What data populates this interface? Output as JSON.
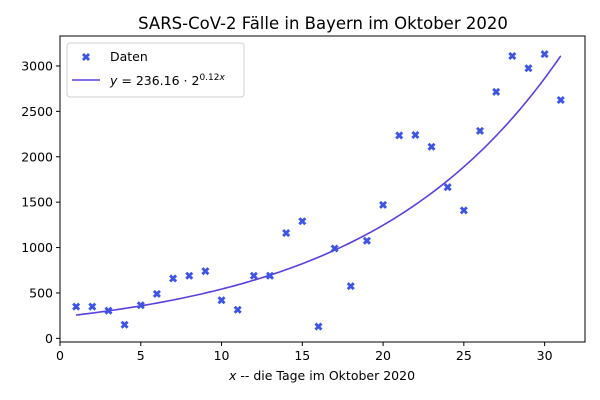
{
  "chart_data": {
    "type": "scatter",
    "title": "SARS-CoV-2 Fälle in Bayern im Oktober 2020",
    "xlabel": "x -- die Tage im Oktober 2020",
    "ylabel": "",
    "xlim": [
      0,
      32.5
    ],
    "ylim": [
      -40,
      3330
    ],
    "xticks": [
      0,
      5,
      10,
      15,
      20,
      25,
      30
    ],
    "yticks": [
      0,
      500,
      1000,
      1500,
      2000,
      2500,
      3000
    ],
    "grid": false,
    "legend_position": "top-left",
    "series": [
      {
        "name": "Daten",
        "kind": "scatter",
        "marker": "X",
        "color": "#3d55e6",
        "x": [
          1,
          2,
          3,
          4,
          5,
          6,
          7,
          8,
          9,
          10,
          11,
          12,
          13,
          14,
          15,
          16,
          17,
          18,
          19,
          20,
          21,
          22,
          23,
          24,
          25,
          26,
          27,
          28,
          29,
          30,
          31
        ],
        "y": [
          350,
          350,
          305,
          150,
          365,
          490,
          660,
          690,
          740,
          420,
          315,
          690,
          690,
          1160,
          1290,
          130,
          990,
          575,
          1075,
          1470,
          2235,
          2240,
          2110,
          1665,
          1410,
          2285,
          2715,
          3110,
          2975,
          3130,
          2625
        ]
      },
      {
        "name": "y = 236.16 · 2^(0.12x)",
        "kind": "line",
        "color": "#5a3fe0",
        "formula": {
          "a": 236.16,
          "base": 2,
          "k": 0.12
        },
        "x_range": [
          1,
          31
        ]
      }
    ]
  }
}
